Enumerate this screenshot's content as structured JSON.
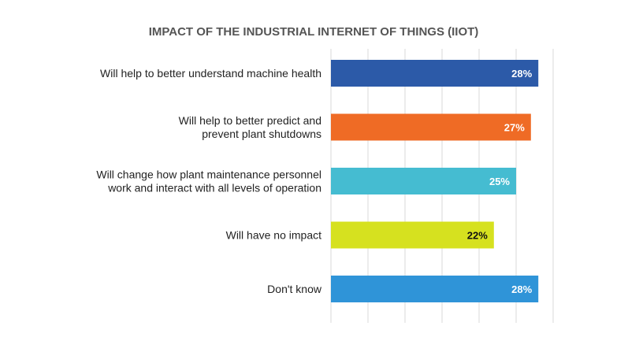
{
  "chart_data": {
    "type": "bar",
    "orientation": "horizontal",
    "title": "IMPACT OF THE INDUSTRIAL INTERNET OF THINGS (IIOT)",
    "categories": [
      [
        "Will help to better understand machine health"
      ],
      [
        "Will help to better predict and",
        "prevent plant shutdowns"
      ],
      [
        "Will change how plant maintenance personnel",
        "work and interact with all levels of operation"
      ],
      [
        "Will have no impact"
      ],
      [
        "Don't know"
      ]
    ],
    "values": [
      28,
      27,
      25,
      22,
      28
    ],
    "value_labels": [
      "28%",
      "27%",
      "25%",
      "22%",
      "28%"
    ],
    "colors": [
      "#2c5aa8",
      "#ef6b25",
      "#45bcd1",
      "#d6e11f",
      "#2f94d8"
    ],
    "label_colors": [
      "#ffffff",
      "#ffffff",
      "#ffffff",
      "#111111",
      "#ffffff"
    ],
    "xlim": [
      0,
      30
    ],
    "gridlines": [
      0,
      5,
      10,
      15,
      20,
      25,
      30
    ],
    "xlabel": "",
    "ylabel": "",
    "grid": true
  }
}
